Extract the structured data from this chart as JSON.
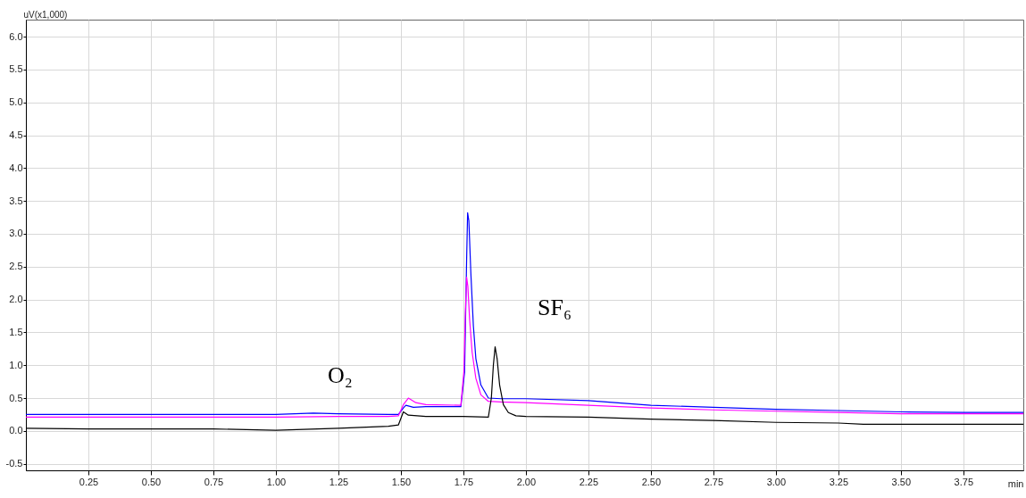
{
  "chart_data": {
    "type": "line",
    "ylabel": "uV(x1,000)",
    "xlabel": "min",
    "xlim": [
      0,
      3.99
    ],
    "ylim": [
      -0.6,
      6.26
    ],
    "xticks": [
      {
        "value": 0.25,
        "label": "0.25"
      },
      {
        "value": 0.5,
        "label": "0.50"
      },
      {
        "value": 0.75,
        "label": "0.75"
      },
      {
        "value": 1,
        "label": "1.00"
      },
      {
        "value": 1.25,
        "label": "1.25"
      },
      {
        "value": 1.5,
        "label": "1.50"
      },
      {
        "value": 1.75,
        "label": "1.75"
      },
      {
        "value": 2,
        "label": "2.00"
      },
      {
        "value": 2.25,
        "label": "2.25"
      },
      {
        "value": 2.5,
        "label": "2.50"
      },
      {
        "value": 2.75,
        "label": "2.75"
      },
      {
        "value": 3,
        "label": "3.00"
      },
      {
        "value": 3.25,
        "label": "3.25"
      },
      {
        "value": 3.5,
        "label": "3.50"
      },
      {
        "value": 3.75,
        "label": "3.75"
      }
    ],
    "yticks": [
      -0.5,
      {
        "value": 0,
        "label": "0.0"
      },
      0.5,
      {
        "value": 1,
        "label": "1.0"
      },
      1.5,
      {
        "value": 2,
        "label": "2.0"
      },
      2.5,
      {
        "value": 3,
        "label": "3.0"
      },
      3.5,
      {
        "value": 4,
        "label": "4.0"
      },
      4.5,
      {
        "value": 5,
        "label": "5.0"
      },
      5.5,
      {
        "value": 6,
        "label": "6.0"
      }
    ],
    "grid": true,
    "legend": false,
    "line_style": "solid",
    "annotations": [
      "O₂",
      "SF₆"
    ],
    "series": [
      {
        "color": "#0000ff",
        "x": [
          0,
          0.25,
          0.5,
          0.75,
          1,
          1.15,
          1.25,
          1.45,
          1.49,
          1.51,
          1.52,
          1.55,
          1.6,
          1.74,
          1.755,
          1.763,
          1.767,
          1.772,
          1.78,
          1.79,
          1.8,
          1.82,
          1.85,
          1.9,
          2,
          2.25,
          2.5,
          2.75,
          3,
          3.25,
          3.5,
          3.75,
          3.99
        ],
        "values": [
          0.25,
          0.25,
          0.25,
          0.25,
          0.25,
          0.27,
          0.26,
          0.25,
          0.25,
          0.35,
          0.39,
          0.36,
          0.37,
          0.37,
          0.9,
          2.6,
          3.32,
          3.2,
          2.4,
          1.6,
          1.1,
          0.7,
          0.5,
          0.49,
          0.49,
          0.46,
          0.39,
          0.36,
          0.33,
          0.31,
          0.29,
          0.28,
          0.28
        ]
      },
      {
        "color": "#ff00ff",
        "x": [
          0,
          0.25,
          0.5,
          0.75,
          1,
          1.25,
          1.45,
          1.49,
          1.51,
          1.53,
          1.56,
          1.6,
          1.74,
          1.752,
          1.758,
          1.763,
          1.768,
          1.775,
          1.785,
          1.8,
          1.82,
          1.85,
          1.9,
          2,
          2.25,
          2.5,
          2.75,
          3,
          3.25,
          3.5,
          3.75,
          3.99
        ],
        "values": [
          0.21,
          0.21,
          0.21,
          0.21,
          0.21,
          0.22,
          0.22,
          0.23,
          0.4,
          0.5,
          0.43,
          0.4,
          0.39,
          0.9,
          1.8,
          2.34,
          2.2,
          1.7,
          1.2,
          0.8,
          0.55,
          0.45,
          0.44,
          0.43,
          0.39,
          0.35,
          0.32,
          0.3,
          0.28,
          0.26,
          0.26,
          0.26
        ]
      },
      {
        "color": "#000000",
        "x": [
          0,
          0.25,
          0.5,
          0.75,
          1,
          1.25,
          1.45,
          1.49,
          1.51,
          1.53,
          1.6,
          1.75,
          1.85,
          1.862,
          1.87,
          1.877,
          1.885,
          1.895,
          1.91,
          1.93,
          1.96,
          2,
          2.25,
          2.5,
          2.75,
          3,
          3.25,
          3.35,
          3.5,
          3.75,
          3.99
        ],
        "values": [
          0.04,
          0.03,
          0.03,
          0.03,
          0.01,
          0.04,
          0.07,
          0.09,
          0.29,
          0.24,
          0.22,
          0.22,
          0.21,
          0.5,
          1.0,
          1.28,
          1.1,
          0.7,
          0.4,
          0.28,
          0.23,
          0.22,
          0.21,
          0.18,
          0.16,
          0.13,
          0.12,
          0.1,
          0.1,
          0.1,
          0.1
        ]
      }
    ]
  }
}
